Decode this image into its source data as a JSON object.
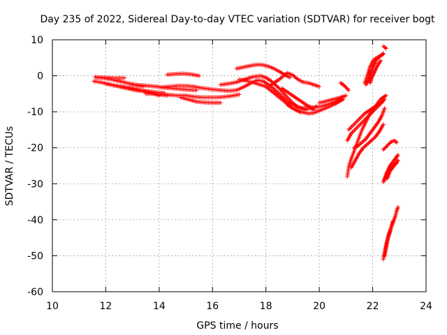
{
  "chart_data": {
    "type": "scatter",
    "title": "Day 235 of 2022, Sidereal Day-to-day VTEC variation (SDTVAR) for receiver bogt",
    "xlabel": "GPS time / hours",
    "ylabel": "SDTVAR / TECUs",
    "xlim": [
      10,
      24
    ],
    "ylim": [
      -60,
      10
    ],
    "xticks": [
      10,
      12,
      14,
      16,
      18,
      20,
      22,
      24
    ],
    "yticks": [
      10,
      0,
      -10,
      -20,
      -30,
      -40,
      -50,
      -60
    ],
    "grid": true,
    "marker": "+",
    "color": "#ff0000",
    "tracks": [
      {
        "x": [
          11.55,
          11.8,
          12.1,
          12.4,
          12.7,
          13.0,
          13.3,
          13.6,
          13.9,
          14.2
        ],
        "y": [
          -1.5,
          -1.8,
          -2.3,
          -2.8,
          -3.2,
          -3.6,
          -4.0,
          -4.3,
          -4.6,
          -4.8
        ]
      },
      {
        "x": [
          11.6,
          11.9,
          12.2,
          12.5,
          12.8,
          13.1,
          13.4
        ],
        "y": [
          -0.3,
          -0.6,
          -1.0,
          -1.5,
          -2.0,
          -2.5,
          -3.0
        ]
      },
      {
        "x": [
          11.65,
          12.0,
          12.3,
          12.7
        ],
        "y": [
          -0.5,
          -0.5,
          -0.6,
          -0.6
        ]
      },
      {
        "x": [
          12.0,
          12.3,
          12.6,
          12.9,
          13.2,
          13.5,
          13.8,
          14.0
        ],
        "y": [
          -2.2,
          -2.7,
          -3.0,
          -3.3,
          -3.8,
          -4.4,
          -5.0,
          -5.5
        ]
      },
      {
        "x": [
          12.5,
          12.8,
          13.1,
          13.4,
          13.7,
          14.0,
          14.3
        ],
        "y": [
          -3.0,
          -3.5,
          -4.0,
          -4.3,
          -4.8,
          -5.2,
          -5.5
        ]
      },
      {
        "x": [
          13.0,
          13.3,
          13.6,
          13.9,
          14.2,
          14.5,
          14.8,
          15.1,
          15.4
        ],
        "y": [
          -2.5,
          -2.6,
          -2.8,
          -3.0,
          -3.3,
          -3.5,
          -3.7,
          -3.9,
          -4.0
        ]
      },
      {
        "x": [
          13.5,
          13.8,
          14.1,
          14.4,
          14.7,
          15.0,
          15.3,
          15.6,
          15.9,
          16.2,
          16.5,
          16.8,
          17.0
        ],
        "y": [
          -5.0,
          -5.0,
          -5.2,
          -5.3,
          -5.5,
          -5.5,
          -5.8,
          -6.0,
          -6.0,
          -6.0,
          -5.8,
          -5.5,
          -5.2
        ]
      },
      {
        "x": [
          14.1,
          14.4,
          14.7,
          15.0,
          15.3,
          15.5,
          15.7,
          16.0,
          16.3,
          16.6,
          16.9,
          17.2,
          17.5,
          17.7,
          17.9,
          18.2,
          18.5,
          18.8,
          19.2,
          19.5,
          19.7,
          19.9
        ],
        "y": [
          -3.2,
          -3.0,
          -2.8,
          -2.8,
          -3.0,
          -3.3,
          -3.5,
          -3.8,
          -4.0,
          -4.2,
          -4.0,
          -3.0,
          -1.8,
          -1.2,
          -1.5,
          -3.0,
          -5.0,
          -7.2,
          -8.6,
          -9.2,
          -9.0,
          -8.5
        ]
      },
      {
        "x": [
          14.3,
          14.6,
          14.9,
          15.2,
          15.5
        ],
        "y": [
          0.3,
          0.5,
          0.6,
          0.4,
          0.0
        ]
      },
      {
        "x": [
          14.8,
          15.1,
          15.4,
          15.7,
          16.0,
          16.3
        ],
        "y": [
          -6.0,
          -6.6,
          -7.2,
          -7.4,
          -7.5,
          -7.5
        ]
      },
      {
        "x": [
          16.3,
          16.6,
          16.9,
          17.2,
          17.5,
          17.8,
          18.0,
          18.2,
          18.5,
          18.8,
          19.0,
          19.2,
          19.4,
          19.5
        ],
        "y": [
          -2.5,
          -2.2,
          -1.8,
          -1.0,
          -0.3,
          0.0,
          -0.5,
          -1.5,
          -3.5,
          -6.0,
          -7.5,
          -8.8,
          -9.3,
          -9.5
        ]
      },
      {
        "x": [
          16.9,
          17.1,
          17.3,
          17.5,
          17.7,
          17.9,
          18.1,
          18.3,
          18.5,
          18.7,
          18.9
        ],
        "y": [
          2.0,
          2.3,
          2.6,
          2.9,
          3.1,
          3.0,
          2.6,
          2.0,
          1.2,
          0.3,
          -0.5
        ]
      },
      {
        "x": [
          17.0,
          17.5,
          18.0,
          18.5,
          19.0,
          19.3
        ],
        "y": [
          -1.0,
          -1.8,
          -3.0,
          -6.0,
          -9.0,
          -10.2
        ]
      },
      {
        "x": [
          18.2,
          18.5,
          18.8,
          19.0,
          19.2,
          19.4,
          19.6,
          19.8,
          20.0
        ],
        "y": [
          -2.5,
          -1.0,
          0.8,
          0.2,
          -1.0,
          -1.8,
          -2.0,
          -2.5,
          -3.0
        ]
      },
      {
        "x": [
          18.8,
          19.0,
          19.3,
          19.6,
          19.8,
          20.0,
          20.3,
          20.6,
          20.9
        ],
        "y": [
          -8.0,
          -9.0,
          -10.0,
          -10.5,
          -10.3,
          -9.7,
          -8.8,
          -7.8,
          -6.5
        ]
      },
      {
        "x": [
          18.6,
          18.8,
          19.0,
          19.2,
          19.4,
          19.6,
          19.8
        ],
        "y": [
          -3.5,
          -4.5,
          -5.5,
          -6.5,
          -7.5,
          -8.5,
          -9.5
        ]
      },
      {
        "x": [
          19.5,
          19.8,
          20.1,
          20.4,
          20.7,
          20.9
        ],
        "y": [
          -8.5,
          -8.8,
          -8.5,
          -7.8,
          -6.8,
          -5.8
        ]
      },
      {
        "x": [
          20.0,
          20.2,
          20.4,
          20.6,
          20.8,
          21.0
        ],
        "y": [
          -7.5,
          -7.2,
          -6.8,
          -6.4,
          -6.0,
          -5.5
        ]
      },
      {
        "x": [
          20.8,
          20.9,
          21.0,
          21.1
        ],
        "y": [
          -2.0,
          -2.5,
          -3.2,
          -4.0
        ]
      },
      {
        "x": [
          21.05,
          21.1,
          21.2,
          21.3,
          21.4,
          21.5,
          21.6,
          21.7,
          21.8,
          21.9,
          22.0,
          22.1,
          22.2,
          22.3,
          22.4,
          22.5
        ],
        "y": [
          -28.0,
          -25.5,
          -23.0,
          -21.0,
          -19.0,
          -17.0,
          -15.0,
          -13.5,
          -12.0,
          -10.5,
          -9.5,
          -8.5,
          -7.5,
          -6.5,
          -6.0,
          -5.5
        ]
      },
      {
        "x": [
          21.05,
          21.2,
          21.4,
          21.6,
          21.8,
          22.0,
          22.2,
          22.4
        ],
        "y": [
          -18.0,
          -16.0,
          -14.5,
          -13.0,
          -11.5,
          -10.0,
          -8.5,
          -7.0
        ]
      },
      {
        "x": [
          21.1,
          21.3,
          21.5,
          21.7,
          21.9,
          22.1,
          22.3,
          22.45
        ],
        "y": [
          -15.0,
          -13.5,
          -12.0,
          -10.5,
          -9.5,
          -8.5,
          -7.5,
          -6.5
        ]
      },
      {
        "x": [
          21.2,
          21.35,
          21.5,
          21.65,
          21.8,
          21.95,
          22.1,
          22.25,
          22.4
        ],
        "y": [
          -25.5,
          -23.5,
          -21.5,
          -20.0,
          -19.0,
          -18.0,
          -17.0,
          -15.5,
          -13.5
        ]
      },
      {
        "x": [
          21.3,
          21.45,
          21.6,
          21.75,
          21.9,
          22.05,
          22.2,
          22.35,
          22.45
        ],
        "y": [
          -20.0,
          -19.5,
          -18.5,
          -17.5,
          -16.0,
          -14.5,
          -13.0,
          -11.0,
          -9.0
        ]
      },
      {
        "x": [
          21.75,
          21.8,
          21.85,
          21.9,
          21.95,
          22.0,
          22.05,
          22.1,
          22.15,
          22.2,
          22.25,
          22.3,
          22.35,
          22.4
        ],
        "y": [
          -2.5,
          -1.8,
          -0.8,
          0.2,
          1.2,
          2.2,
          3.0,
          3.8,
          4.5,
          5.0,
          5.3,
          5.6,
          5.9,
          6.2
        ]
      },
      {
        "x": [
          21.7,
          21.8,
          21.9,
          22.0,
          22.1,
          22.2,
          22.3,
          22.4
        ],
        "y": [
          -2.0,
          0.0,
          2.5,
          4.0,
          4.8,
          5.2,
          5.6,
          6.0
        ]
      },
      {
        "x": [
          21.9,
          21.95,
          22.0,
          22.05,
          22.1,
          22.15,
          22.2,
          22.25,
          22.3
        ],
        "y": [
          -2.0,
          -1.0,
          0.0,
          0.8,
          1.6,
          2.4,
          3.0,
          3.6,
          4.2
        ]
      },
      {
        "x": [
          22.4,
          22.45,
          22.5
        ],
        "y": [
          8.2,
          8.0,
          7.6
        ]
      },
      {
        "x": [
          22.4,
          22.5,
          22.6,
          22.7,
          22.8,
          22.9
        ],
        "y": [
          -20.5,
          -19.8,
          -19.0,
          -18.3,
          -18.0,
          -18.5
        ]
      },
      {
        "x": [
          22.4,
          22.45,
          22.5,
          22.55,
          22.6,
          22.65,
          22.7,
          22.75,
          22.8,
          22.85,
          22.9,
          22.95
        ],
        "y": [
          -29.5,
          -28.5,
          -27.5,
          -26.5,
          -25.8,
          -25.0,
          -24.5,
          -24.0,
          -23.5,
          -23.0,
          -22.5,
          -22.0
        ]
      },
      {
        "x": [
          22.45,
          22.5,
          22.55,
          22.6,
          22.65,
          22.7,
          22.75,
          22.8,
          22.85,
          22.9
        ],
        "y": [
          -29.0,
          -28.0,
          -27.0,
          -26.5,
          -26.0,
          -25.5,
          -25.0,
          -24.8,
          -24.5,
          -24.2
        ]
      },
      {
        "x": [
          22.55,
          22.6,
          22.65,
          22.7,
          22.75,
          22.8,
          22.85,
          22.9,
          22.95
        ],
        "y": [
          -28.5,
          -27.5,
          -26.5,
          -26.0,
          -25.5,
          -25.0,
          -24.5,
          -24.0,
          -23.5
        ]
      },
      {
        "x": [
          22.4,
          22.45,
          22.5,
          22.55,
          22.6,
          22.65,
          22.7,
          22.75,
          22.8,
          22.85,
          22.9,
          22.95
        ],
        "y": [
          -51.0,
          -49.0,
          -47.0,
          -45.5,
          -44.0,
          -43.0,
          -42.0,
          -41.0,
          -40.0,
          -39.0,
          -37.5,
          -36.5
        ]
      },
      {
        "x": [
          22.45,
          22.5,
          22.55,
          22.6,
          22.65,
          22.7,
          22.75
        ],
        "y": [
          -50.0,
          -48.0,
          -46.0,
          -44.5,
          -43.5,
          -42.0,
          -40.5
        ]
      }
    ]
  }
}
